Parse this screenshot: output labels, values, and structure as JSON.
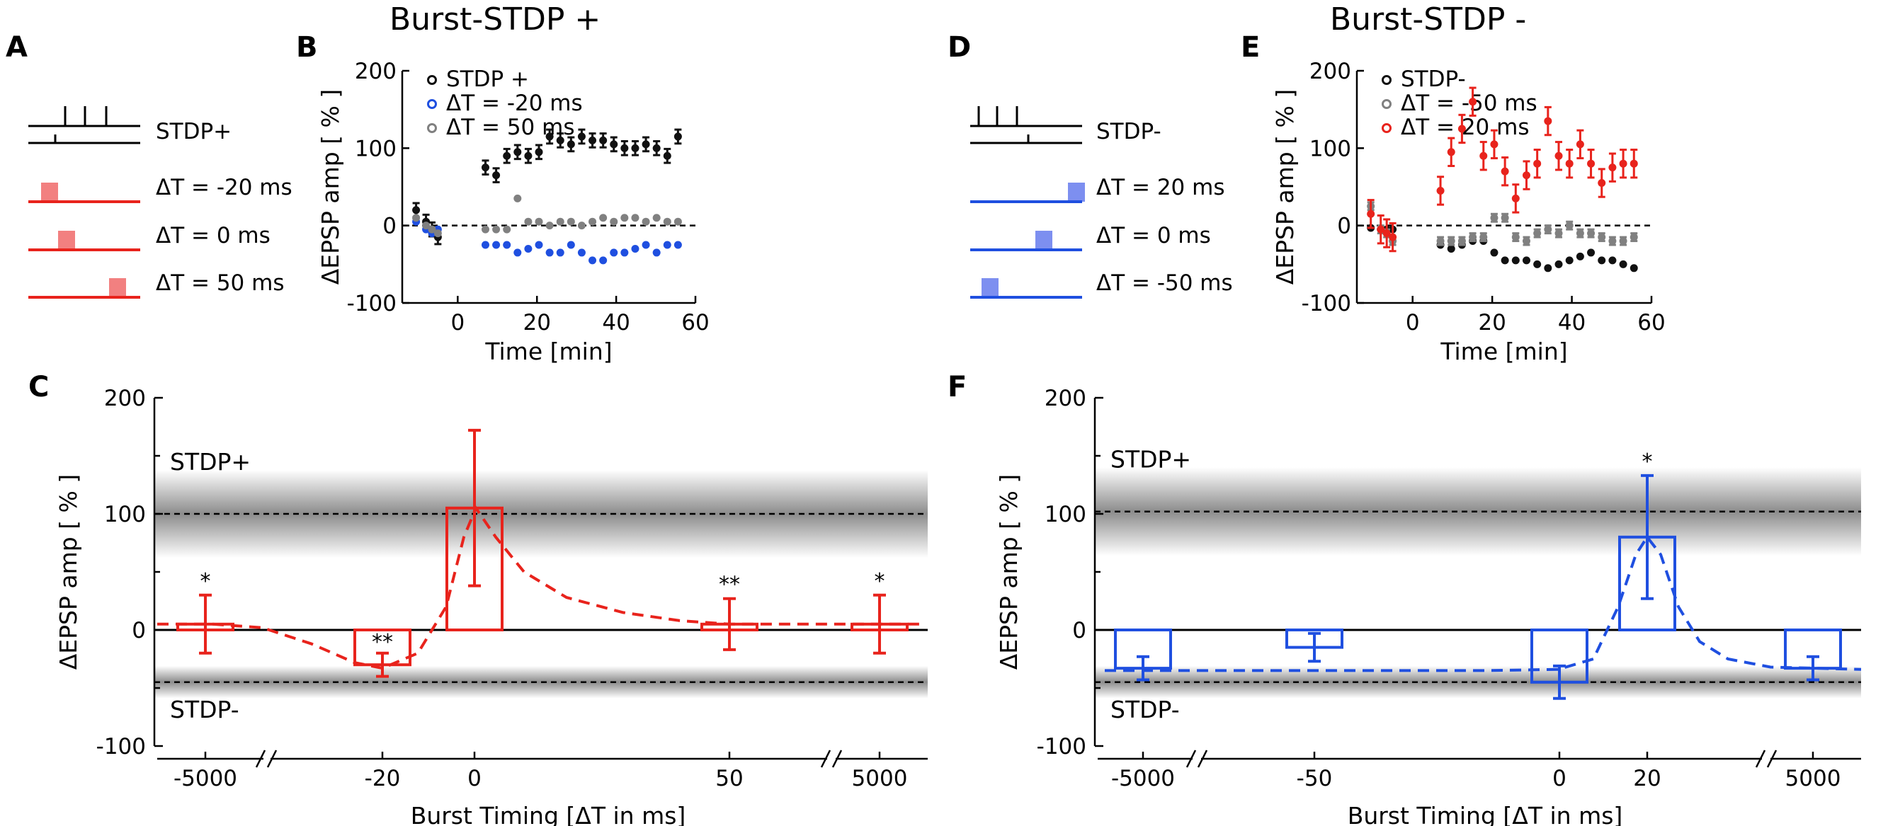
{
  "panel_labels": {
    "A": "A",
    "B": "B",
    "C": "C",
    "D": "D",
    "E": "E",
    "F": "F"
  },
  "titles": {
    "left": "Burst-STDP +",
    "right": "Burst-STDP -"
  },
  "schematic_A": {
    "labels": [
      "STDP+",
      "ΔT = -20 ms",
      "ΔT = 0 ms",
      "ΔT = 50 ms"
    ],
    "color": "#e8231c",
    "pulse_color": "#f28080"
  },
  "schematic_D": {
    "labels": [
      "STDP-",
      "ΔT = 20 ms",
      "ΔT = 0 ms",
      "ΔT = -50 ms"
    ],
    "color": "#1f4fe0",
    "pulse_color": "#7d8ff0"
  },
  "chart_data": [
    {
      "panel": "B",
      "type": "scatter",
      "title": "",
      "xlabel": "Time [min]",
      "ylabel": "ΔEPSP amp [ % ]",
      "xlim": [
        -14,
        60
      ],
      "ylim": [
        -100,
        200
      ],
      "xticks": [
        0,
        20,
        40,
        60
      ],
      "yticks": [
        -100,
        0,
        100,
        200
      ],
      "reference_line": 0,
      "legend_position": "top-left",
      "series": [
        {
          "name": "STDP +",
          "color": "#111111",
          "error": 9,
          "x": [
            -10.5,
            -8,
            -6.5,
            -5,
            7,
            9.7,
            12.4,
            15.1,
            17.8,
            20.5,
            23.2,
            25.9,
            28.6,
            31.3,
            34,
            36.7,
            39.4,
            42.1,
            44.8,
            47.5,
            50.2,
            52.9,
            55.6
          ],
          "y": [
            20,
            5,
            -5,
            -15,
            75,
            65,
            90,
            95,
            90,
            95,
            115,
            110,
            105,
            115,
            110,
            110,
            105,
            100,
            100,
            105,
            100,
            90,
            115
          ]
        },
        {
          "name": "ΔT = -20 ms",
          "color": "#1f4fe0",
          "error": 3,
          "x": [
            -10.5,
            -8,
            -6.5,
            -5,
            7,
            9.7,
            12.4,
            15.1,
            17.8,
            20.5,
            23.2,
            25.9,
            28.6,
            31.3,
            34,
            36.7,
            39.4,
            42.1,
            44.8,
            47.5,
            50.2,
            52.9,
            55.6
          ],
          "y": [
            5,
            -5,
            -10,
            -5,
            -25,
            -25,
            -25,
            -35,
            -30,
            -25,
            -35,
            -35,
            -25,
            -35,
            -45,
            -45,
            -35,
            -35,
            -30,
            -25,
            -35,
            -25,
            -25
          ]
        },
        {
          "name": "ΔT = 50 ms",
          "color": "#808080",
          "error": 3,
          "x": [
            -10.5,
            -8,
            -6.5,
            -5,
            7,
            9.7,
            12.4,
            15.1,
            17.8,
            20.5,
            23.2,
            25.9,
            28.6,
            31.3,
            34,
            36.7,
            39.4,
            42.1,
            44.8,
            47.5,
            50.2,
            52.9,
            55.6
          ],
          "y": [
            10,
            0,
            -5,
            -10,
            -5,
            -5,
            -5,
            35,
            5,
            5,
            0,
            5,
            5,
            0,
            5,
            10,
            5,
            10,
            10,
            5,
            10,
            5,
            5
          ]
        }
      ]
    },
    {
      "panel": "E",
      "type": "scatter",
      "title": "",
      "xlabel": "Time [min]",
      "ylabel": "ΔEPSP amp [ % ]",
      "xlim": [
        -14,
        60
      ],
      "ylim": [
        -100,
        200
      ],
      "xticks": [
        0,
        20,
        40,
        60
      ],
      "yticks": [
        -100,
        0,
        100,
        200
      ],
      "reference_line": 0,
      "legend_position": "top-left",
      "series": [
        {
          "name": "STDP-",
          "color": "#111111",
          "error": 4,
          "x": [
            -10.5,
            -8,
            -6.5,
            -5,
            7,
            9.7,
            12.4,
            15.1,
            17.8,
            20.5,
            23.2,
            25.9,
            28.6,
            31.3,
            34,
            36.7,
            39.4,
            42.1,
            44.8,
            47.5,
            50.2,
            52.9,
            55.6
          ],
          "y": [
            -3,
            -5,
            -5,
            -5,
            -25,
            -30,
            -25,
            -20,
            -20,
            -35,
            -45,
            -45,
            -45,
            -50,
            -55,
            -50,
            -45,
            -40,
            -35,
            -45,
            -45,
            -50,
            -55
          ]
        },
        {
          "name": "ΔT = -50 ms",
          "color": "#808080",
          "error": 5,
          "x": [
            -10.5,
            -8,
            -6.5,
            -5,
            7,
            9.7,
            12.4,
            15.1,
            17.8,
            20.5,
            23.2,
            25.9,
            28.6,
            31.3,
            34,
            36.7,
            39.4,
            42.1,
            44.8,
            47.5,
            50.2,
            52.9,
            55.6
          ],
          "y": [
            25,
            -5,
            -10,
            -20,
            -20,
            -20,
            -20,
            -15,
            -15,
            10,
            10,
            -15,
            -20,
            -10,
            -5,
            -10,
            0,
            -10,
            -10,
            -15,
            -20,
            -20,
            -15
          ]
        },
        {
          "name": "ΔT = 20 ms",
          "color": "#e8231c",
          "error": 18,
          "x": [
            -10.5,
            -8,
            -6.5,
            -5,
            7,
            9.7,
            12.4,
            15.1,
            17.8,
            20.5,
            23.2,
            25.9,
            28.6,
            31.3,
            34,
            36.7,
            39.4,
            42.1,
            44.8,
            47.5,
            50.2,
            52.9,
            55.6
          ],
          "y": [
            15,
            -5,
            -10,
            -15,
            45,
            95,
            125,
            160,
            90,
            105,
            70,
            35,
            65,
            80,
            135,
            90,
            80,
            105,
            80,
            55,
            75,
            80,
            80
          ]
        }
      ]
    },
    {
      "panel": "C",
      "type": "bar",
      "title": "",
      "xlabel": "Burst Timing  [ΔT in ms]",
      "ylabel": "ΔEPSP amp [ % ]",
      "categories": [
        "-5000",
        "-20",
        "0",
        "50",
        "5000"
      ],
      "values": [
        5,
        -30,
        105,
        5,
        5
      ],
      "errors": [
        25,
        10,
        67,
        22,
        25
      ],
      "significance": [
        "*",
        "**",
        "",
        "**",
        "*"
      ],
      "ylim": [
        -100,
        200
      ],
      "yticks": [
        -100,
        0,
        100,
        200
      ],
      "color": "#e8231c",
      "bands": [
        {
          "label": "STDP+",
          "mean": 100,
          "spread": 38
        },
        {
          "label": "STDP-",
          "mean": -45,
          "spread": 14
        }
      ],
      "fit_curve": {
        "style": "dashed",
        "color": "#e8231c"
      }
    },
    {
      "panel": "F",
      "type": "bar",
      "title": "",
      "xlabel": "Burst Timing  [ΔT in ms]",
      "ylabel": "ΔEPSP amp [ % ]",
      "categories": [
        "-5000",
        "-50",
        "0",
        "20",
        "5000"
      ],
      "values": [
        -33,
        -15,
        -45,
        80,
        -33
      ],
      "errors": [
        10,
        12,
        14,
        53,
        10
      ],
      "significance": [
        "",
        "",
        "",
        "*",
        ""
      ],
      "ylim": [
        -100,
        200
      ],
      "yticks": [
        -100,
        0,
        100,
        200
      ],
      "color": "#1f4fe0",
      "bands": [
        {
          "label": "STDP+",
          "mean": 102,
          "spread": 38
        },
        {
          "label": "STDP-",
          "mean": -45,
          "spread": 14
        }
      ],
      "fit_curve": {
        "style": "dashed",
        "color": "#1f4fe0",
        "baseline": -35
      }
    }
  ]
}
